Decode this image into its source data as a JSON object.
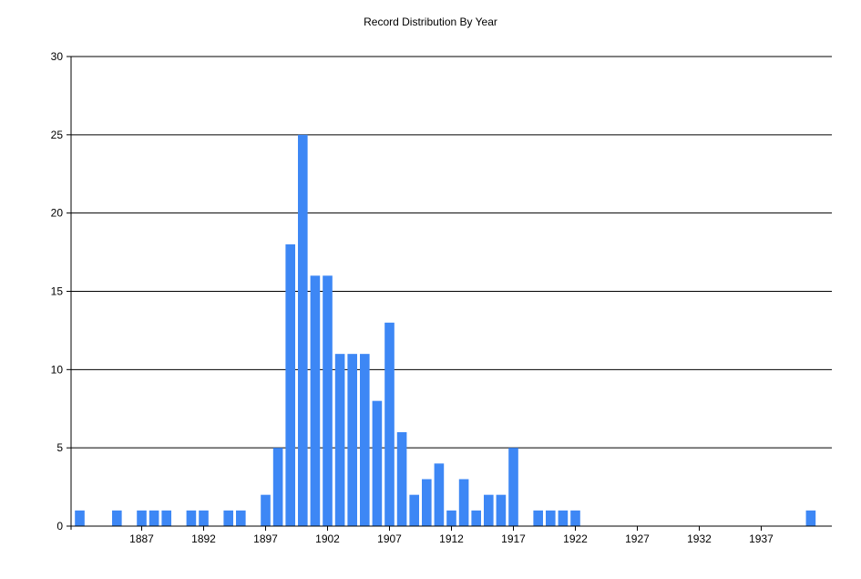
{
  "chart_data": {
    "type": "bar",
    "title": "Record Distribution By Year",
    "xlabel": "",
    "ylabel": "",
    "x": [
      1882,
      1885,
      1887,
      1888,
      1889,
      1891,
      1892,
      1894,
      1895,
      1897,
      1898,
      1899,
      1900,
      1901,
      1902,
      1903,
      1904,
      1905,
      1906,
      1907,
      1908,
      1909,
      1910,
      1911,
      1912,
      1913,
      1914,
      1915,
      1916,
      1917,
      1919,
      1920,
      1921,
      1922,
      1941
    ],
    "values": [
      1,
      1,
      1,
      1,
      1,
      1,
      1,
      1,
      1,
      2,
      5,
      18,
      25,
      16,
      16,
      11,
      11,
      11,
      8,
      13,
      6,
      2,
      3,
      4,
      1,
      3,
      1,
      2,
      2,
      5,
      1,
      1,
      1,
      1,
      1
    ],
    "x_ticks": [
      1887,
      1892,
      1897,
      1902,
      1907,
      1912,
      1917,
      1922,
      1927,
      1932,
      1937
    ],
    "xlim": [
      1881.3,
      1942.7
    ],
    "y_ticks": [
      0,
      5,
      10,
      15,
      20,
      25,
      30
    ],
    "ylim": [
      0,
      30
    ],
    "grid": "horizontal",
    "legend": "none",
    "bar_color": "#3d87f5",
    "axis_color": "#000000"
  }
}
